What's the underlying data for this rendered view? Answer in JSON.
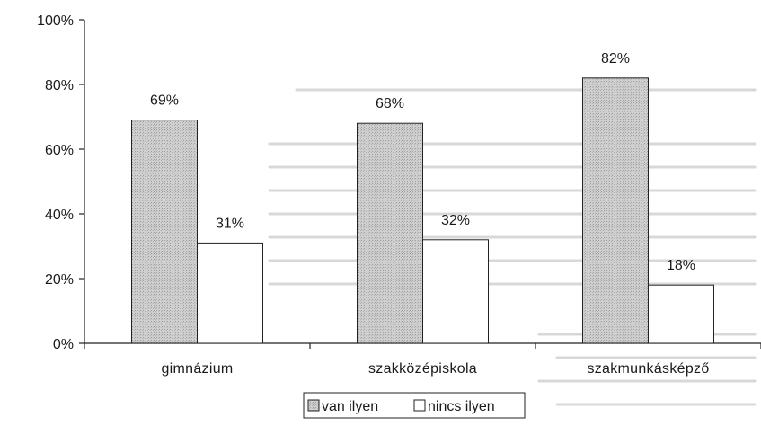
{
  "chart_data": {
    "type": "bar",
    "categories": [
      "gimnázium",
      "szakközépiskola",
      "szakmunkásképző"
    ],
    "series": [
      {
        "name": "van ilyen",
        "values": [
          69,
          68,
          82
        ],
        "labels": [
          "69%",
          "68%",
          "82%"
        ],
        "color": "#c8c8c8",
        "pattern": "dotted-gray"
      },
      {
        "name": "nincs ilyen",
        "values": [
          31,
          32,
          18
        ],
        "labels": [
          "31%",
          "32%",
          "18%"
        ],
        "color": "#ffffff",
        "pattern": "none"
      }
    ],
    "y_ticks": [
      "0%",
      "20%",
      "40%",
      "60%",
      "80%",
      "100%"
    ],
    "ylim": [
      0,
      100
    ],
    "grid": false,
    "legend_position": "bottom-center",
    "title": "",
    "xlabel": "",
    "ylabel": ""
  }
}
